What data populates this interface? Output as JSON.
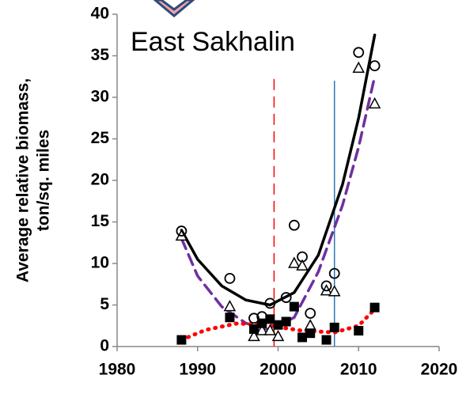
{
  "chart_data": {
    "type": "scatter",
    "annotation": "East Sakhalin",
    "ylabel": [
      "Average relative biomass,",
      "ton/sq. miles"
    ],
    "xlim": [
      1980,
      2020
    ],
    "xticks": [
      1980,
      1990,
      2000,
      2010,
      2020
    ],
    "ylim": [
      0,
      40
    ],
    "yticks": [
      0,
      5,
      10,
      15,
      20,
      25,
      30,
      35,
      40
    ],
    "series": [
      {
        "marker": "circle",
        "color": "#000000",
        "x": [
          1988,
          1994,
          1997,
          1998,
          1999,
          2001,
          2002,
          2003,
          2004,
          2006,
          2007,
          2010,
          2012
        ],
        "values": [
          13.9,
          8.2,
          3.4,
          3.6,
          5.2,
          5.9,
          14.6,
          10.8,
          4.0,
          7.3,
          8.8,
          35.4,
          33.8
        ]
      },
      {
        "marker": "triangle",
        "color": "#000000",
        "x": [
          1988,
          1994,
          1997,
          1998,
          1999,
          2000,
          2002,
          2003,
          2004,
          2006,
          2007,
          2010,
          2012
        ],
        "values": [
          13.3,
          4.8,
          1.2,
          1.9,
          1.9,
          1.2,
          10,
          9.7,
          2.5,
          6.7,
          6.6,
          33.5,
          29.2
        ]
      },
      {
        "marker": "square",
        "color": "#000000",
        "x": [
          1988,
          1994,
          1997,
          1998,
          1999,
          2000,
          2001,
          2002,
          2003,
          2004,
          2006,
          2007,
          2010,
          2012
        ],
        "values": [
          0.8,
          3.5,
          2.1,
          2.8,
          3.3,
          2.6,
          3.0,
          4.8,
          1.1,
          1.6,
          0.8,
          2.3,
          1.9,
          4.7
        ]
      },
      {
        "marker": "line",
        "color": "#000000",
        "dash": "solid",
        "x": [
          1988,
          1990,
          1993,
          1996,
          1999,
          2002,
          2005,
          2008,
          2010,
          2012
        ],
        "values": [
          14,
          10.5,
          7.3,
          5.6,
          5,
          6.5,
          11,
          19.5,
          27.5,
          37.5
        ]
      },
      {
        "marker": "line",
        "color": "#7030a0",
        "dash": "dashed",
        "x": [
          1988,
          1990,
          1993,
          1996,
          1999,
          2002,
          2005,
          2008,
          2010,
          2012
        ],
        "values": [
          13,
          8.5,
          4.8,
          2.8,
          2,
          3.5,
          9,
          17,
          24,
          32.5
        ]
      },
      {
        "marker": "line",
        "color": "#ff0000",
        "dash": "dotted",
        "x": [
          1988,
          1991,
          1995,
          1999,
          2003,
          2007,
          2010,
          2012
        ],
        "values": [
          0.8,
          2,
          2.8,
          2.5,
          1.9,
          1.7,
          2.5,
          4.5
        ]
      }
    ],
    "vlines": [
      {
        "x": 1999.5,
        "top": 32.2,
        "color": "#ff0000",
        "dash": "dashed"
      },
      {
        "x": 2007,
        "top": 32,
        "color": "#2e75b6",
        "dash": "solid"
      }
    ]
  }
}
